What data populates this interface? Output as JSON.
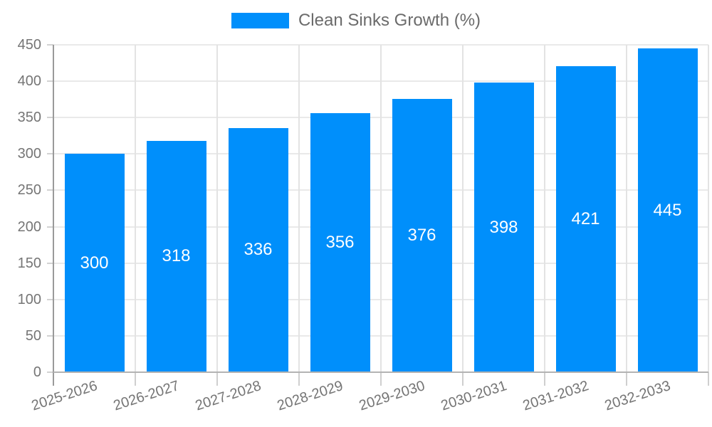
{
  "chart_data": {
    "type": "bar",
    "title": "Clean Sinks Growth (%)",
    "legend": {
      "label": "Clean Sinks Growth (%)",
      "position": "top"
    },
    "categories": [
      "2025-2026",
      "2026-2027",
      "2027-2028",
      "2028-2029",
      "2029-2030",
      "2030-2031",
      "2031-2032",
      "2032-2033"
    ],
    "values": [
      300,
      318,
      336,
      356,
      376,
      398,
      421,
      445
    ],
    "series": [
      {
        "name": "Clean Sinks Growth (%)",
        "values": [
          300,
          318,
          336,
          356,
          376,
          398,
          421,
          445
        ]
      }
    ],
    "xlabel": "",
    "ylabel": "",
    "ylim": [
      0,
      450
    ],
    "y_ticks": [
      0,
      50,
      100,
      150,
      200,
      250,
      300,
      350,
      400,
      450
    ],
    "grid": true,
    "x_label_rotation_deg": -18,
    "colors": {
      "bar": "#008FFB",
      "value_label": "#ffffff",
      "axis_label": "#757575",
      "legend_label": "#6b6b6b",
      "gridline": "#e9e9e9",
      "axis_line": "#9a9a9a"
    }
  }
}
